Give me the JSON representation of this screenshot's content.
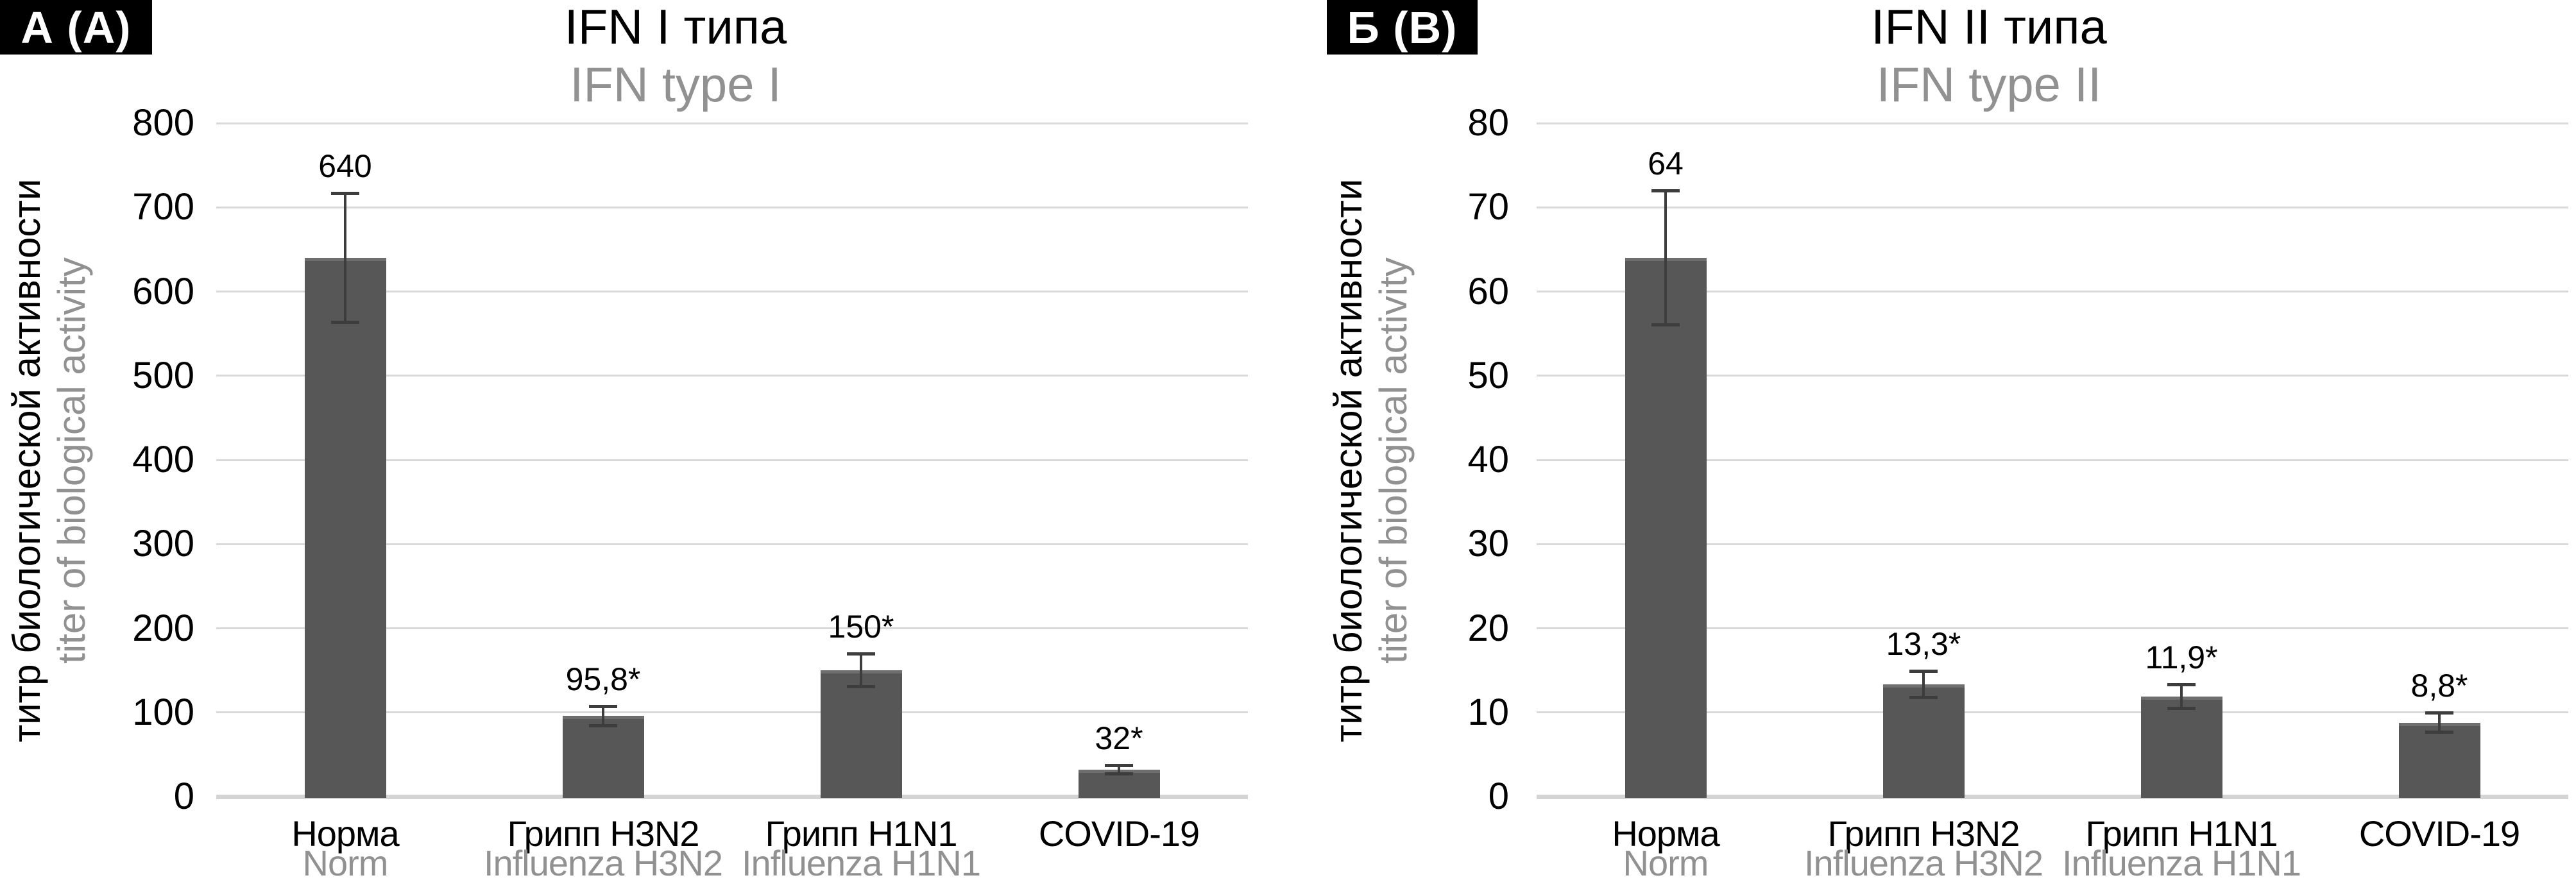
{
  "figure": {
    "background_color": "#ffffff",
    "colors": {
      "bar": "#575757",
      "bar_top_edge": "#6e6e6e",
      "gridline": "#d9d9d9",
      "axis_baseline": "#d4d4d4",
      "error_bar": "#3d3d3d",
      "text_primary": "#000000",
      "text_secondary": "#919191",
      "corner_label_bg": "#000000",
      "corner_label_text": "#ffffff"
    },
    "panels": [
      {
        "corner_label": "А (А)",
        "title": "IFN I типа",
        "subtitle": "IFN type I",
        "y_axis_label_ru": "титр биологической активности",
        "y_axis_label_en": "titer of biological activity"
      },
      {
        "corner_label": "Б (В)",
        "title": "IFN II типа",
        "subtitle": "IFN type II",
        "y_axis_label_ru": "титр биологической активности",
        "y_axis_label_en": "titer of biological activity"
      }
    ]
  },
  "chart_data": [
    {
      "type": "bar",
      "panel": "А (А)",
      "title": "IFN I типа",
      "subtitle": "IFN type I",
      "xlabel": "",
      "ylabel": "титр биологической активности / titer of biological activity",
      "categories": [
        "Норма",
        "Грипп H3N2",
        "Грипп H1N1",
        "COVID-19"
      ],
      "categories_en": [
        "Norm",
        "Influenza H3N2",
        "Influenza H1N1",
        ""
      ],
      "values": [
        640,
        95.8,
        150,
        32
      ],
      "value_labels": [
        "640",
        "95,8*",
        "150*",
        "32*"
      ],
      "error_bars_estimated": [
        77,
        12,
        20,
        5
      ],
      "ylim": [
        0,
        800
      ],
      "yticks": [
        0,
        100,
        200,
        300,
        400,
        500,
        600,
        700,
        800
      ],
      "grid": true,
      "legend": false,
      "bar_color": "#575757"
    },
    {
      "type": "bar",
      "panel": "Б (В)",
      "title": "IFN II типа",
      "subtitle": "IFN type II",
      "xlabel": "",
      "ylabel": "титр биологической активности / titer of biological activity",
      "categories": [
        "Норма",
        "Грипп H3N2",
        "Грипп H1N1",
        "COVID-19"
      ],
      "categories_en": [
        "Norm",
        "Influenza H3N2",
        "Influenza H1N1",
        ""
      ],
      "values": [
        64,
        13.3,
        11.9,
        8.8
      ],
      "value_labels": [
        "64",
        "13,3*",
        "11,9*",
        "8,8*"
      ],
      "error_bars_estimated": [
        8,
        1.6,
        1.45,
        1.2
      ],
      "ylim": [
        0,
        80
      ],
      "yticks": [
        0,
        10,
        20,
        30,
        40,
        50,
        60,
        70,
        80
      ],
      "grid": true,
      "legend": false,
      "bar_color": "#575757"
    }
  ]
}
